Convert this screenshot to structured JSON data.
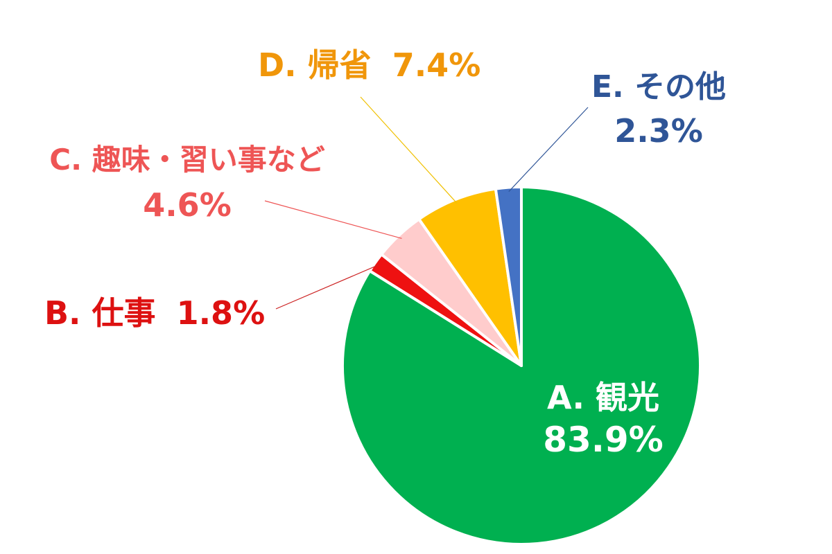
{
  "chart_data": {
    "type": "pie",
    "start": "top",
    "direction": "clockwise",
    "slices": [
      {
        "key": "A",
        "name": "A. 観光",
        "value": 83.9,
        "label": "83.9%",
        "color": "#00b050",
        "label_color": "#ffffff"
      },
      {
        "key": "B",
        "name": "B. 仕事",
        "value": 1.8,
        "label": "1.8%",
        "color": "#ee1111",
        "label_color": "#dd1111"
      },
      {
        "key": "C",
        "name": "C. 趣味・習い事など",
        "value": 4.6,
        "label": "4.6%",
        "color": "#ffcccc",
        "label_color": "#ee5555"
      },
      {
        "key": "D",
        "name": "D. 帰省",
        "value": 7.4,
        "label": "7.4%",
        "color": "#ffc000",
        "label_color": "#f0960a"
      },
      {
        "key": "E",
        "name": "E. その他",
        "value": 2.3,
        "label": "2.3%",
        "color": "#4472c4",
        "label_color": "#2f5597"
      }
    ],
    "leader_colors": {
      "B": "#cc2222",
      "C": "#ee5555",
      "D": "#f0c000",
      "E": "#2f5597"
    }
  }
}
